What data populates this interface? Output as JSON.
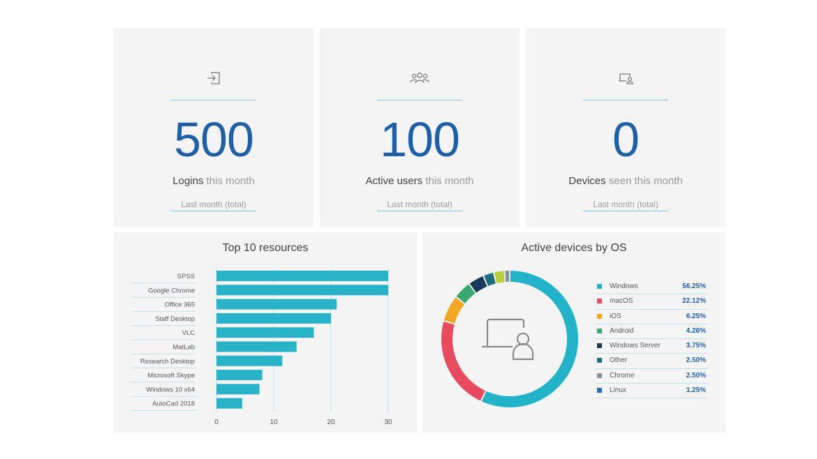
{
  "stats": [
    {
      "icon": "login-icon",
      "value": "500",
      "label_strong": "Logins",
      "label_rest": " this month",
      "footer": "Last month (total)"
    },
    {
      "icon": "users-icon",
      "value": "100",
      "label_strong": "Active users",
      "label_rest": " this month",
      "footer": "Last month (total)"
    },
    {
      "icon": "device-user-icon",
      "value": "0",
      "label_strong": "Devices",
      "label_rest": " seen this month",
      "footer": "Last month (total)"
    }
  ],
  "resources": {
    "title": "Top 10 resources"
  },
  "os": {
    "title": "Active devices by OS",
    "center_icon": "laptop-user-icon"
  },
  "colors": {
    "accent_blue": "#1f5fa6",
    "bar": "#29b3c9"
  },
  "chart_data": [
    {
      "type": "bar",
      "orientation": "horizontal",
      "title": "Top 10 resources",
      "categories": [
        "SPSS",
        "Google Chrome",
        "Office 365",
        "Staff Desktop",
        "VLC",
        "MatLab",
        "Research Desktop",
        "Microsoft Skype",
        "Windows 10 x64",
        "AutoCad 2018"
      ],
      "values": [
        30,
        30,
        21,
        20,
        17,
        14,
        11.5,
        8,
        7.5,
        4.5
      ],
      "xlim": [
        0,
        30
      ],
      "xticks": [
        "0",
        "10",
        "20",
        "30"
      ],
      "color": "#29b3c9"
    },
    {
      "type": "pie",
      "donut": true,
      "title": "Active devices by OS",
      "labels": [
        "Windows",
        "macOS",
        "iOS",
        "Android",
        "Windows Server",
        "Other",
        "Chrome",
        "Linux"
      ],
      "values": [
        56.25,
        22.12,
        6.25,
        4.26,
        3.75,
        2.5,
        2.5,
        1.25
      ],
      "display": [
        "56.25%",
        "22.12%",
        "6.25%",
        "4.26%",
        "3.75%",
        "2.50%",
        "2.50%",
        "1.25%"
      ],
      "colors": [
        "#23b3c8",
        "#e84a5f",
        "#f5a623",
        "#3aa96e",
        "#1a3a5c",
        "#1d6e7e",
        "#8a8f9c",
        "#2a6bc0"
      ],
      "ring_colors": [
        "#23b3c8",
        "#e84a5f",
        "#f5a623",
        "#3aa96e",
        "#1a3a5c",
        "#1d6e7e",
        "#b7cf3a",
        "#8a8f9c"
      ]
    }
  ]
}
